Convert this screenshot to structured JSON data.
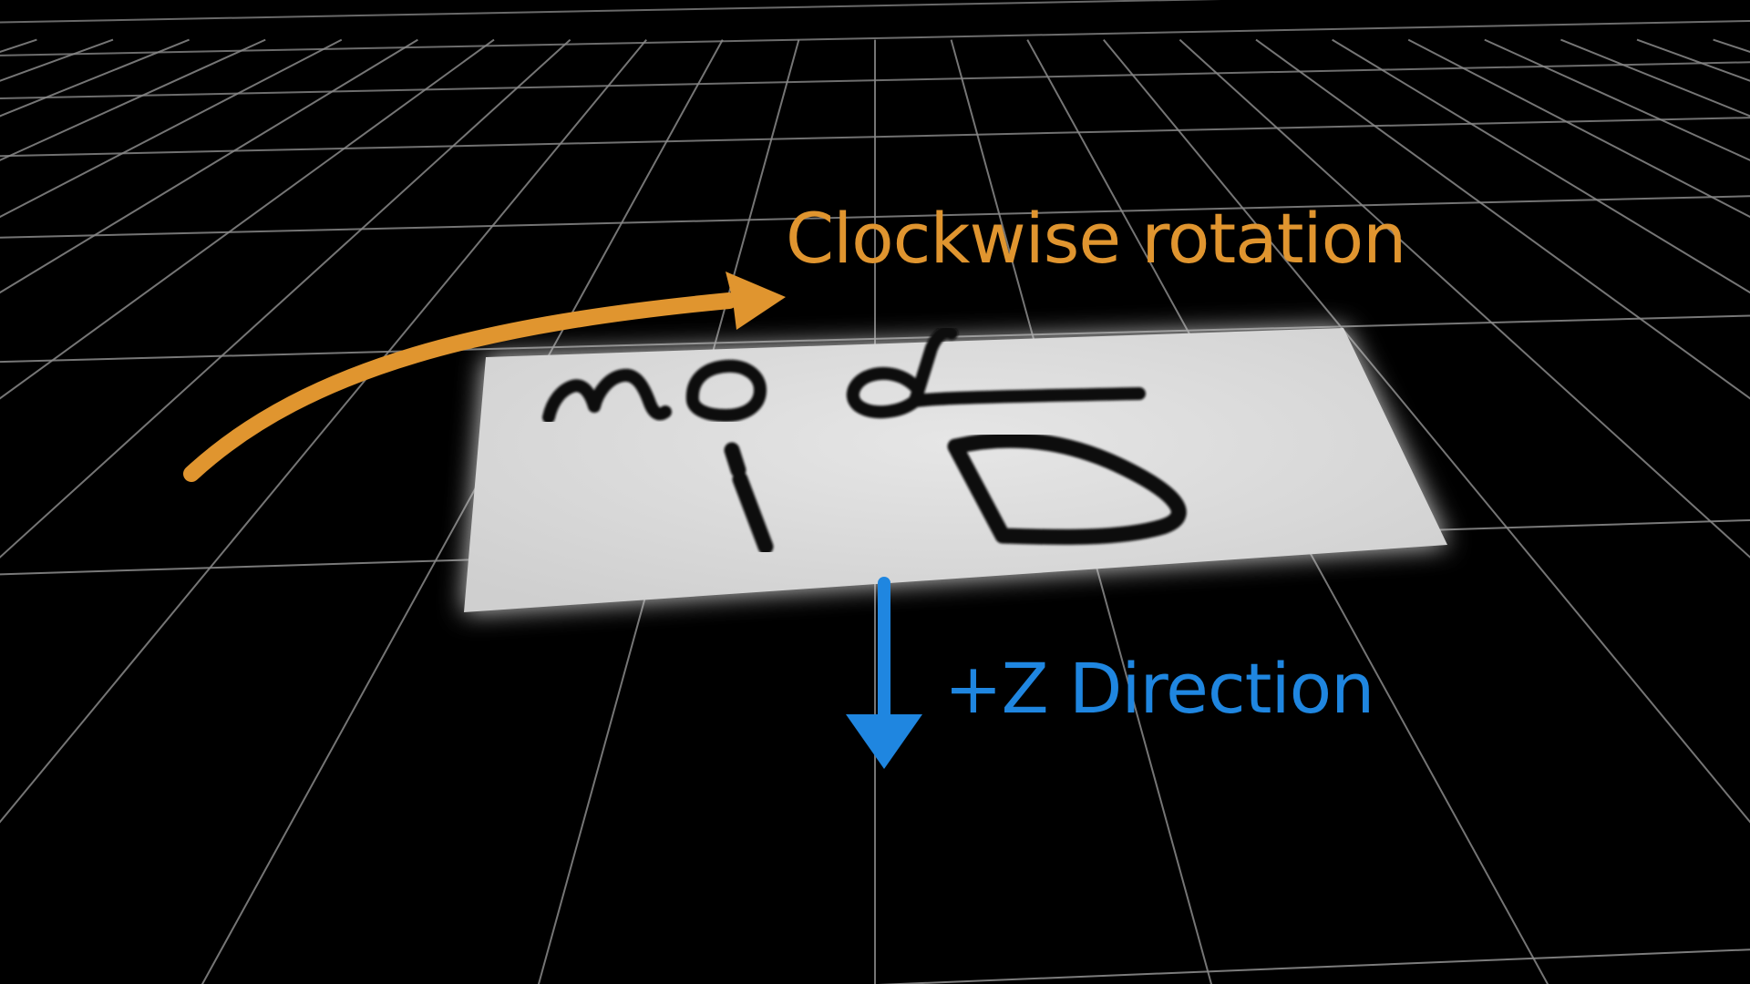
{
  "labels": {
    "rotation": "Clockwise rotation",
    "direction": "+Z Direction"
  },
  "sign": {
    "line1": "Mod",
    "line2": "ID"
  },
  "colors": {
    "background": "#000000",
    "grid": "#8a8a8a",
    "rotation": "#e0952f",
    "direction": "#1f86e0",
    "card": "#dcdcdc",
    "ink": "#111111"
  },
  "icons": {
    "rotation": "curved-arrow-icon",
    "direction": "down-arrow-icon"
  }
}
